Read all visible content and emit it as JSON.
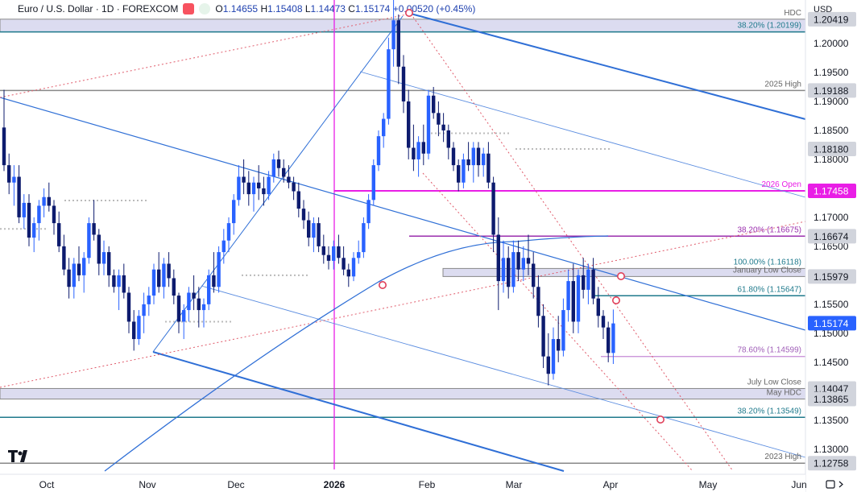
{
  "header": {
    "symbol_title": "Euro / U.S. Dollar · 1D · FOREXCOM",
    "o_label": "O",
    "o": "1.14655",
    "h_label": "H",
    "h": "1.15408",
    "l_label": "L",
    "l": "1.14473",
    "c_label": "C",
    "c": "1.15174",
    "change": "+0.00520 (+0.45%)",
    "currency": "USD"
  },
  "chart_data": {
    "type": "candlestick",
    "title": "Euro / U.S. Dollar · 1D · FOREXCOM",
    "x_ticks": [
      "Oct",
      "Nov",
      "Dec",
      "2026",
      "Feb",
      "Mar",
      "Apr",
      "May",
      "Jun"
    ],
    "ylim": [
      1.1265,
      1.2075
    ],
    "y_ticks": [
      "1.20000",
      "1.19500",
      "1.19000",
      "1.18500",
      "1.18000",
      "1.17500",
      "1.17000",
      "1.16500",
      "1.16000",
      "1.15500",
      "1.15000",
      "1.14500",
      "1.14000",
      "1.13500",
      "1.13000"
    ],
    "price_tags": [
      {
        "value": 1.20419,
        "label": "1.20419",
        "style": "grey"
      },
      {
        "value": 1.19188,
        "label": "1.19188",
        "style": "grey"
      },
      {
        "value": 1.1818,
        "label": "1.18180",
        "style": "grey"
      },
      {
        "value": 1.17458,
        "label": "1.17458",
        "style": "magenta"
      },
      {
        "value": 1.16674,
        "label": "1.16674",
        "style": "grey"
      },
      {
        "value": 1.15979,
        "label": "1.15979",
        "style": "grey"
      },
      {
        "value": 1.15174,
        "label": "1.15174",
        "style": "blue"
      },
      {
        "value": 1.14047,
        "label": "1.14047",
        "style": "grey"
      },
      {
        "value": 1.13865,
        "label": "1.13865",
        "style": "grey"
      },
      {
        "value": 1.12758,
        "label": "1.12758",
        "style": "grey"
      }
    ],
    "annotations": [
      {
        "text": "HDC",
        "value": 1.20419
      },
      {
        "text": "38.20% (1.20199)",
        "value": 1.20199
      },
      {
        "text": "2025 High",
        "value": 1.19188
      },
      {
        "text": "2026 Open",
        "value": 1.17458
      },
      {
        "text": "38.20% (1.16675)",
        "value": 1.16675
      },
      {
        "text": "100.00% (1.16118)",
        "value": 1.16118
      },
      {
        "text": "January Low Close",
        "value": 1.15979
      },
      {
        "text": "61.80% (1.15647)",
        "value": 1.15647
      },
      {
        "text": "78.60% (1.14599)",
        "value": 1.14599
      },
      {
        "text": "July Low Close",
        "value": 1.14047
      },
      {
        "text": "May HDC",
        "value": 1.13865
      },
      {
        "text": "38.20% (1.13549)",
        "value": 1.13549
      },
      {
        "text": "2023 High",
        "value": 1.12758
      }
    ],
    "colors": {
      "up": "#2962ff",
      "down": "#0d1b6e",
      "magenta": "#e91ee6",
      "teal": "#1f7a8c",
      "band": "#dcdcf0",
      "trend": "#2f6fd6",
      "pivot": "#e0405a"
    },
    "candles": [
      [
        1.1855,
        1.192,
        1.178,
        1.179
      ],
      [
        1.179,
        1.181,
        1.174,
        1.176
      ],
      [
        1.176,
        1.179,
        1.172,
        1.177
      ],
      [
        1.177,
        1.179,
        1.169,
        1.17
      ],
      [
        1.17,
        1.174,
        1.168,
        1.1725
      ],
      [
        1.1725,
        1.174,
        1.165,
        1.1665
      ],
      [
        1.1665,
        1.17,
        1.164,
        1.169
      ],
      [
        1.169,
        1.173,
        1.166,
        1.172
      ],
      [
        1.172,
        1.175,
        1.17,
        1.1735
      ],
      [
        1.1735,
        1.176,
        1.171,
        1.172
      ],
      [
        1.172,
        1.173,
        1.167,
        1.169
      ],
      [
        1.169,
        1.171,
        1.164,
        1.165
      ],
      [
        1.165,
        1.167,
        1.16,
        1.161
      ],
      [
        1.161,
        1.163,
        1.156,
        1.158
      ],
      [
        1.158,
        1.163,
        1.156,
        1.162
      ],
      [
        1.162,
        1.165,
        1.159,
        1.16
      ],
      [
        1.16,
        1.164,
        1.157,
        1.163
      ],
      [
        1.163,
        1.17,
        1.162,
        1.169
      ],
      [
        1.169,
        1.173,
        1.166,
        1.167
      ],
      [
        1.167,
        1.168,
        1.16,
        1.162
      ],
      [
        1.162,
        1.166,
        1.16,
        1.164
      ],
      [
        1.164,
        1.165,
        1.158,
        1.16
      ],
      [
        1.16,
        1.161,
        1.157,
        1.158
      ],
      [
        1.158,
        1.161,
        1.154,
        1.16
      ],
      [
        1.16,
        1.162,
        1.156,
        1.157
      ],
      [
        1.157,
        1.158,
        1.15,
        1.152
      ],
      [
        1.152,
        1.154,
        1.147,
        1.149
      ],
      [
        1.149,
        1.154,
        1.148,
        1.153
      ],
      [
        1.153,
        1.157,
        1.15,
        1.155
      ],
      [
        1.155,
        1.158,
        1.153,
        1.1565
      ],
      [
        1.1565,
        1.162,
        1.155,
        1.161
      ],
      [
        1.161,
        1.164,
        1.157,
        1.158
      ],
      [
        1.158,
        1.163,
        1.156,
        1.162
      ],
      [
        1.162,
        1.164,
        1.158,
        1.1595
      ],
      [
        1.1595,
        1.161,
        1.155,
        1.1565
      ],
      [
        1.1565,
        1.157,
        1.15,
        1.152
      ],
      [
        1.152,
        1.155,
        1.149,
        1.154
      ],
      [
        1.154,
        1.158,
        1.152,
        1.157
      ],
      [
        1.157,
        1.16,
        1.154,
        1.156
      ],
      [
        1.156,
        1.158,
        1.151,
        1.154
      ],
      [
        1.154,
        1.156,
        1.151,
        1.155
      ],
      [
        1.155,
        1.161,
        1.154,
        1.16
      ],
      [
        1.16,
        1.164,
        1.157,
        1.158
      ],
      [
        1.158,
        1.165,
        1.157,
        1.164
      ],
      [
        1.164,
        1.168,
        1.162,
        1.166
      ],
      [
        1.166,
        1.17,
        1.164,
        1.169
      ],
      [
        1.169,
        1.174,
        1.167,
        1.173
      ],
      [
        1.173,
        1.179,
        1.172,
        1.177
      ],
      [
        1.177,
        1.18,
        1.174,
        1.176
      ],
      [
        1.176,
        1.178,
        1.172,
        1.174
      ],
      [
        1.174,
        1.177,
        1.171,
        1.176
      ],
      [
        1.176,
        1.179,
        1.173,
        1.175
      ],
      [
        1.175,
        1.177,
        1.172,
        1.174
      ],
      [
        1.174,
        1.178,
        1.173,
        1.177
      ],
      [
        1.177,
        1.181,
        1.176,
        1.18
      ],
      [
        1.18,
        1.1815,
        1.177,
        1.1785
      ],
      [
        1.1785,
        1.18,
        1.176,
        1.177
      ],
      [
        1.177,
        1.179,
        1.175,
        1.176
      ],
      [
        1.176,
        1.177,
        1.173,
        1.1745
      ],
      [
        1.1745,
        1.176,
        1.17,
        1.1715
      ],
      [
        1.1715,
        1.173,
        1.168,
        1.1695
      ],
      [
        1.1695,
        1.171,
        1.165,
        1.1665
      ],
      [
        1.1665,
        1.17,
        1.164,
        1.169
      ],
      [
        1.169,
        1.17,
        1.164,
        1.165
      ],
      [
        1.165,
        1.167,
        1.162,
        1.1635
      ],
      [
        1.1635,
        1.165,
        1.161,
        1.1625
      ],
      [
        1.1625,
        1.166,
        1.161,
        1.165
      ],
      [
        1.165,
        1.167,
        1.162,
        1.163
      ],
      [
        1.163,
        1.165,
        1.16,
        1.161
      ],
      [
        1.161,
        1.162,
        1.158,
        1.1598
      ],
      [
        1.1598,
        1.164,
        1.159,
        1.163
      ],
      [
        1.163,
        1.166,
        1.162,
        1.164
      ],
      [
        1.164,
        1.17,
        1.163,
        1.169
      ],
      [
        1.169,
        1.174,
        1.168,
        1.173
      ],
      [
        1.173,
        1.18,
        1.172,
        1.179
      ],
      [
        1.179,
        1.185,
        1.178,
        1.184
      ],
      [
        1.184,
        1.188,
        1.182,
        1.187
      ],
      [
        1.187,
        1.201,
        1.186,
        1.199
      ],
      [
        1.199,
        1.2082,
        1.196,
        1.204
      ],
      [
        1.204,
        1.205,
        1.193,
        1.196
      ],
      [
        1.196,
        1.198,
        1.188,
        1.19
      ],
      [
        1.19,
        1.192,
        1.18,
        1.182
      ],
      [
        1.182,
        1.186,
        1.178,
        1.18
      ],
      [
        1.18,
        1.184,
        1.177,
        1.183
      ],
      [
        1.183,
        1.186,
        1.179,
        1.181
      ],
      [
        1.181,
        1.192,
        1.18,
        1.191
      ],
      [
        1.191,
        1.1925,
        1.187,
        1.188
      ],
      [
        1.188,
        1.19,
        1.184,
        1.186
      ],
      [
        1.186,
        1.188,
        1.183,
        1.185
      ],
      [
        1.185,
        1.186,
        1.18,
        1.182
      ],
      [
        1.182,
        1.183,
        1.178,
        1.179
      ],
      [
        1.179,
        1.18,
        1.1745,
        1.176
      ],
      [
        1.176,
        1.181,
        1.175,
        1.18
      ],
      [
        1.18,
        1.183,
        1.178,
        1.179
      ],
      [
        1.179,
        1.183,
        1.176,
        1.182
      ],
      [
        1.182,
        1.183,
        1.177,
        1.179
      ],
      [
        1.179,
        1.182,
        1.177,
        1.181
      ],
      [
        1.181,
        1.183,
        1.175,
        1.176
      ],
      [
        1.176,
        1.177,
        1.164,
        1.167
      ],
      [
        1.167,
        1.17,
        1.154,
        1.159
      ],
      [
        1.159,
        1.166,
        1.157,
        1.163
      ],
      [
        1.163,
        1.165,
        1.156,
        1.158
      ],
      [
        1.158,
        1.166,
        1.157,
        1.164
      ],
      [
        1.164,
        1.166,
        1.159,
        1.161
      ],
      [
        1.161,
        1.165,
        1.159,
        1.163
      ],
      [
        1.163,
        1.167,
        1.16,
        1.162
      ],
      [
        1.162,
        1.164,
        1.156,
        1.158
      ],
      [
        1.158,
        1.16,
        1.151,
        1.153
      ],
      [
        1.153,
        1.155,
        1.144,
        1.146
      ],
      [
        1.146,
        1.15,
        1.141,
        1.143
      ],
      [
        1.143,
        1.151,
        1.142,
        1.149
      ],
      [
        1.149,
        1.153,
        1.145,
        1.147
      ],
      [
        1.147,
        1.156,
        1.146,
        1.154
      ],
      [
        1.154,
        1.161,
        1.152,
        1.159
      ],
      [
        1.159,
        1.162,
        1.15,
        1.152
      ],
      [
        1.152,
        1.161,
        1.15,
        1.16
      ],
      [
        1.16,
        1.163,
        1.156,
        1.1575
      ],
      [
        1.1575,
        1.162,
        1.155,
        1.161
      ],
      [
        1.161,
        1.163,
        1.155,
        1.156
      ],
      [
        1.156,
        1.158,
        1.151,
        1.153
      ],
      [
        1.153,
        1.154,
        1.149,
        1.151
      ],
      [
        1.151,
        1.152,
        1.145,
        1.1466
      ],
      [
        1.1466,
        1.1541,
        1.1447,
        1.1517
      ]
    ]
  }
}
